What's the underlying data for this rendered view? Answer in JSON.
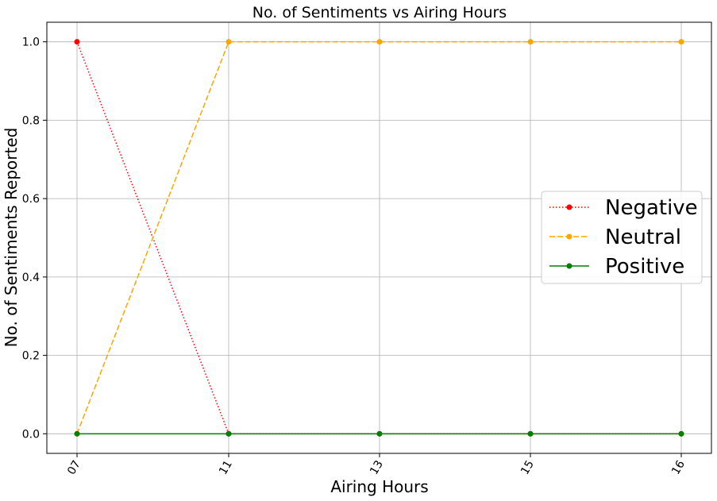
{
  "chart_data": {
    "type": "line",
    "title": "No. of Sentiments vs Airing Hours",
    "xlabel": "Airing Hours",
    "ylabel": "No. of Sentiments Reported",
    "categories": [
      "07",
      "11",
      "13",
      "15",
      "16"
    ],
    "ylim": [
      -0.05,
      1.05
    ],
    "yticks": [
      "0.0",
      "0.2",
      "0.4",
      "0.6",
      "0.8",
      "1.0"
    ],
    "grid": true,
    "legend_position": "center-right",
    "series": [
      {
        "name": "Negative",
        "values": [
          1,
          0,
          0,
          0,
          0
        ],
        "color": "#ff0000",
        "linestyle": "dotted"
      },
      {
        "name": "Neutral",
        "values": [
          0,
          1,
          1,
          1,
          1
        ],
        "color": "#ffa500",
        "linestyle": "dashed"
      },
      {
        "name": "Positive",
        "values": [
          0,
          0,
          0,
          0,
          0
        ],
        "color": "#008000",
        "linestyle": "solid"
      }
    ]
  }
}
